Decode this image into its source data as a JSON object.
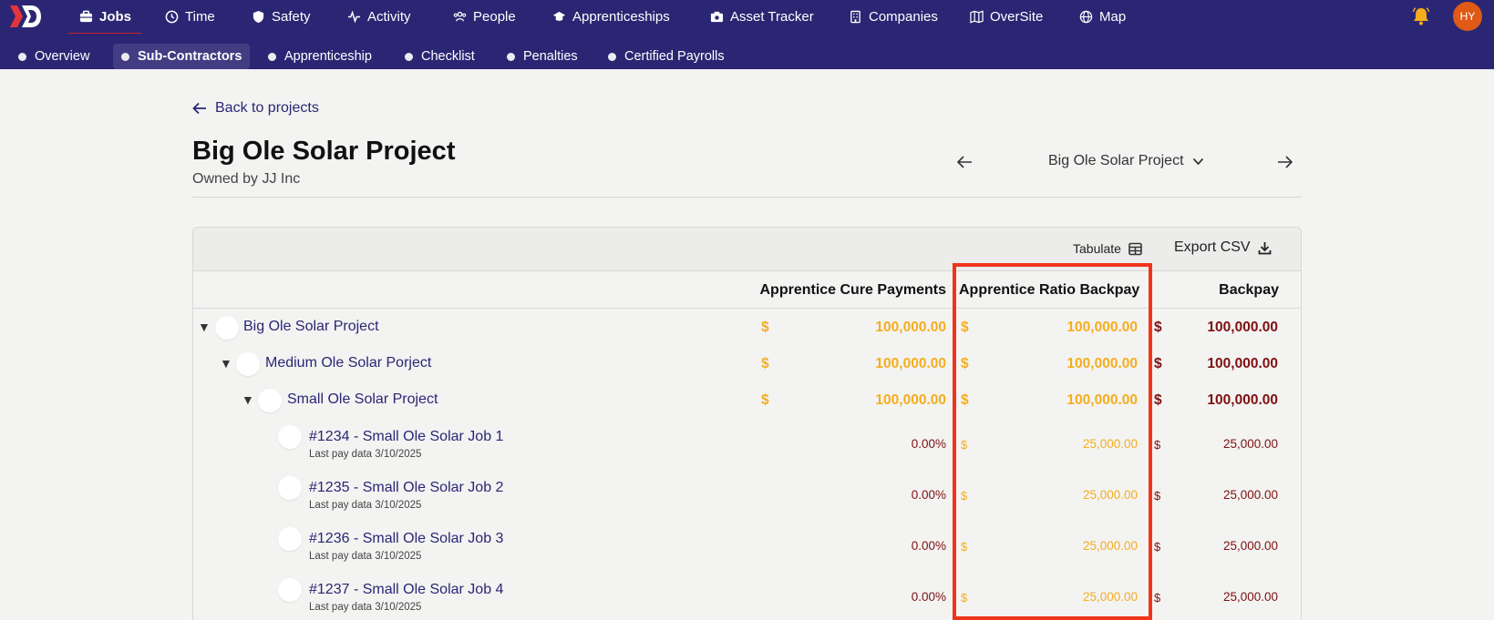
{
  "nav": {
    "items": [
      {
        "label": "Jobs",
        "icon": "briefcase-icon"
      },
      {
        "label": "Time",
        "icon": "clock-icon"
      },
      {
        "label": "Safety",
        "icon": "shield-icon"
      },
      {
        "label": "Activity",
        "icon": "pulse-icon"
      },
      {
        "label": "People",
        "icon": "people-icon"
      },
      {
        "label": "Apprenticeships",
        "icon": "graduation-cap-icon"
      },
      {
        "label": "Asset Tracker",
        "icon": "camera-icon"
      },
      {
        "label": "Companies",
        "icon": "building-icon"
      },
      {
        "label": "OverSite",
        "icon": "map-fold-icon"
      },
      {
        "label": "Map",
        "icon": "globe-icon"
      }
    ],
    "active": "Jobs",
    "avatar_initials": "HY"
  },
  "subnav": {
    "items": [
      "Overview",
      "Sub-Contractors",
      "Apprenticeship",
      "Checklist",
      "Penalties",
      "Certified Payrolls"
    ],
    "active": "Sub-Contractors"
  },
  "header": {
    "back_label": "Back to projects",
    "title": "Big Ole Solar Project",
    "owner": "Owned by JJ Inc",
    "selected_project": "Big Ole Solar Project"
  },
  "toolbar": {
    "tabulate_label": "Tabulate",
    "export_label": "Export CSV"
  },
  "columns": {
    "cure": "Apprentice Cure Payments",
    "ratio": "Apprentice Ratio Backpay",
    "backpay": "Backpay"
  },
  "rows": [
    {
      "name": "Big Ole Solar Project",
      "cure": "100,000.00",
      "ratio": "100,000.00",
      "backpay": "100,000.00",
      "currency": "$"
    },
    {
      "name": "Medium Ole Solar Porject",
      "cure": "100,000.00",
      "ratio": "100,000.00",
      "backpay": "100,000.00",
      "currency": "$"
    },
    {
      "name": "Small Ole Solar Project",
      "cure": "100,000.00",
      "ratio": "100,000.00",
      "backpay": "100,000.00",
      "currency": "$"
    },
    {
      "name": "#1234 - Small Ole Solar Job 1",
      "sub": "Last pay data 3/10/2025",
      "cure": "0.00%",
      "ratio": "25,000.00",
      "backpay": "25,000.00",
      "currency": "$"
    },
    {
      "name": "#1235 - Small Ole Solar Job 2",
      "sub": "Last pay data 3/10/2025",
      "cure": "0.00%",
      "ratio": "25,000.00",
      "backpay": "25,000.00",
      "currency": "$"
    },
    {
      "name": "#1236 - Small Ole Solar Job 3",
      "sub": "Last pay data 3/10/2025",
      "cure": "0.00%",
      "ratio": "25,000.00",
      "backpay": "25,000.00",
      "currency": "$"
    },
    {
      "name": "#1237 - Small Ole Solar Job 4",
      "sub": "Last pay data 3/10/2025",
      "cure": "0.00%",
      "ratio": "25,000.00",
      "backpay": "25,000.00",
      "currency": "$"
    }
  ],
  "colors": {
    "nav_bg": "#2b2673",
    "gold": "#f5ad1d",
    "maroon": "#7d1010",
    "highlight": "#f0341a",
    "active_underline": "#c8202b"
  }
}
